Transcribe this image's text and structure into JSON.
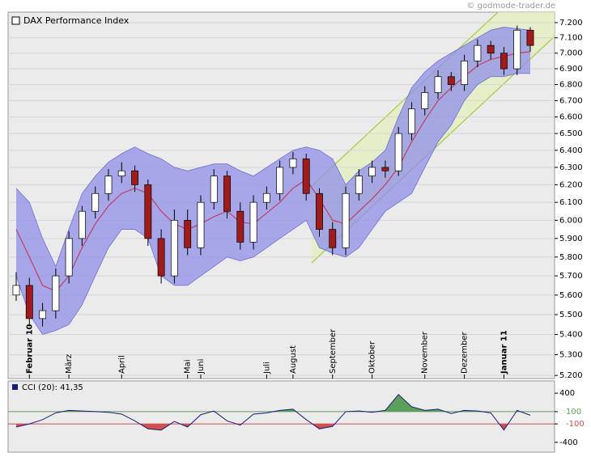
{
  "chart_data": [
    {
      "type": "candlestick",
      "title": "DAX Performance Index",
      "source": "© godmode-trader.de",
      "log_scale": true,
      "grid": true,
      "categories": [
        null,
        "Februar 10",
        null,
        null,
        "März",
        null,
        null,
        null,
        "April",
        null,
        null,
        null,
        null,
        "Mai",
        "Juni",
        null,
        null,
        null,
        null,
        "Juli",
        null,
        "August",
        null,
        null,
        "September",
        null,
        null,
        "Oktober",
        null,
        null,
        null,
        "November",
        null,
        null,
        "Dezember",
        null,
        null,
        "Januar 11",
        null,
        null
      ],
      "open": [
        5600,
        5650,
        5480,
        5520,
        5700,
        5900,
        6050,
        6150,
        6250,
        6280,
        6200,
        5900,
        5700,
        6000,
        5850,
        6100,
        6250,
        6050,
        5880,
        6100,
        6150,
        6300,
        6350,
        6150,
        5950,
        5850,
        6150,
        6250,
        6300,
        6280,
        6500,
        6650,
        6750,
        6850,
        6800,
        6950,
        7050,
        7000,
        6900,
        7150
      ],
      "high": [
        5720,
        5690,
        5560,
        5740,
        5940,
        6080,
        6190,
        6290,
        6330,
        6310,
        6230,
        5950,
        6060,
        6060,
        6140,
        6290,
        6280,
        6100,
        6140,
        6190,
        6340,
        6390,
        6380,
        6180,
        5990,
        6190,
        6290,
        6340,
        6340,
        6540,
        6690,
        6790,
        6890,
        6880,
        6990,
        7090,
        7080,
        7040,
        7180,
        7170
      ],
      "low": [
        5570,
        5440,
        5440,
        5480,
        5660,
        5860,
        6010,
        6110,
        6210,
        6160,
        5860,
        5660,
        5660,
        5810,
        5810,
        6060,
        6010,
        5840,
        5840,
        6060,
        6110,
        6260,
        6110,
        5910,
        5810,
        5810,
        6110,
        6210,
        6240,
        6250,
        6460,
        6610,
        6710,
        6760,
        6760,
        6910,
        6960,
        6860,
        6860,
        7010
      ],
      "close": [
        5650,
        5480,
        5520,
        5700,
        5900,
        6050,
        6150,
        6250,
        6280,
        6200,
        5900,
        5700,
        6000,
        5850,
        6100,
        6250,
        6050,
        5880,
        6100,
        6150,
        6300,
        6350,
        6150,
        5950,
        5850,
        6150,
        6250,
        6300,
        6280,
        6500,
        6650,
        6750,
        6850,
        6800,
        6950,
        7050,
        7000,
        6900,
        7150,
        7050
      ],
      "up_color": "#ffffff",
      "down_color": "#a01c1c",
      "series": [
        {
          "name": "Upper",
          "color": "#6f6fd0",
          "values": [
            6180,
            6100,
            5900,
            5750,
            5950,
            6150,
            6250,
            6330,
            6380,
            6420,
            6380,
            6350,
            6300,
            6280,
            6300,
            6320,
            6320,
            6280,
            6250,
            6300,
            6350,
            6400,
            6420,
            6400,
            6350,
            6200,
            6280,
            6330,
            6400,
            6600,
            6780,
            6880,
            6950,
            7000,
            7050,
            7100,
            7150,
            7170,
            7160,
            7150
          ]
        },
        {
          "name": "Middle",
          "color": "#c04060",
          "values": [
            5950,
            5800,
            5650,
            5620,
            5700,
            5850,
            5980,
            6080,
            6150,
            6180,
            6150,
            6050,
            5980,
            5950,
            5980,
            6020,
            6050,
            5990,
            5980,
            6040,
            6100,
            6180,
            6230,
            6120,
            6000,
            5980,
            6050,
            6120,
            6200,
            6300,
            6450,
            6580,
            6700,
            6780,
            6850,
            6920,
            6960,
            6980,
            7000,
            7010
          ]
        },
        {
          "name": "Lower",
          "color": "#6f6fd0",
          "values": [
            5700,
            5500,
            5400,
            5420,
            5450,
            5550,
            5700,
            5850,
            5950,
            5950,
            5900,
            5700,
            5650,
            5650,
            5700,
            5750,
            5800,
            5780,
            5800,
            5850,
            5900,
            5950,
            6000,
            5850,
            5820,
            5800,
            5850,
            5950,
            6050,
            6100,
            6150,
            6300,
            6450,
            6550,
            6700,
            6800,
            6850,
            6850,
            6870,
            6870
          ]
        }
      ],
      "ylim": [
        5185,
        7270
      ],
      "yticks": [
        {
          "value": 5200,
          "label": "5.200"
        },
        {
          "value": 5300,
          "label": "5.300"
        },
        {
          "value": 5400,
          "label": "5.400"
        },
        {
          "value": 5500,
          "label": "5.500"
        },
        {
          "value": 5600,
          "label": "5.600"
        },
        {
          "value": 5700,
          "label": "5.700"
        },
        {
          "value": 5800,
          "label": "5.800"
        },
        {
          "value": 5900,
          "label": "5.900"
        },
        {
          "value": 6000,
          "label": "6.000"
        },
        {
          "value": 6100,
          "label": "6.100"
        },
        {
          "value": 6200,
          "label": "6.200"
        },
        {
          "value": 6300,
          "label": "6.300"
        },
        {
          "value": 6400,
          "label": "6.400"
        },
        {
          "value": 6500,
          "label": "6.500"
        },
        {
          "value": 6600,
          "label": "6.600"
        },
        {
          "value": 6700,
          "label": "6.700"
        },
        {
          "value": 6800,
          "label": "6.800"
        },
        {
          "value": 6900,
          "label": "6.900"
        },
        {
          "value": 7000,
          "label": "7.000"
        },
        {
          "value": 7100,
          "label": "7.100"
        },
        {
          "value": 7200,
          "label": "7.200"
        }
      ]
    },
    {
      "type": "line",
      "title": "CCI (20): 41,35",
      "color": "#1a1a7a",
      "values": [
        -150,
        -100,
        -30,
        80,
        120,
        110,
        100,
        90,
        60,
        -50,
        -180,
        -200,
        -60,
        -150,
        50,
        110,
        -50,
        -120,
        60,
        80,
        120,
        140,
        -30,
        -180,
        -140,
        100,
        110,
        90,
        120,
        380,
        180,
        120,
        140,
        70,
        120,
        110,
        80,
        -200,
        120,
        41.35
      ],
      "ylim": [
        -560,
        600
      ],
      "yticks": [
        400,
        100,
        -100,
        -400
      ],
      "upper_color": "#5aa05a",
      "lower_color": "#d05050"
    }
  ]
}
